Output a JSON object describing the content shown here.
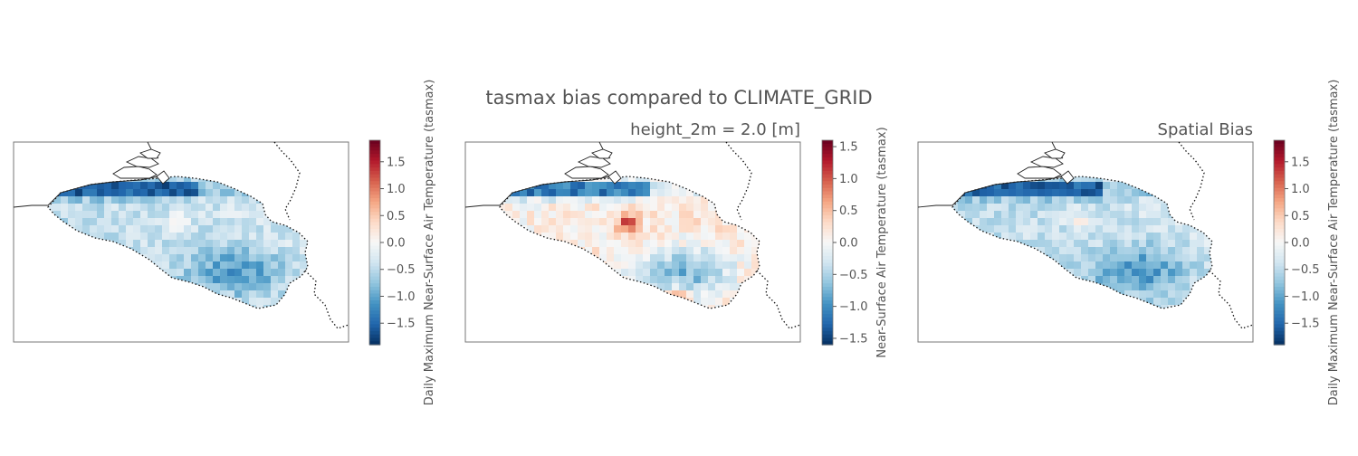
{
  "figure": {
    "title": "tasmax bias compared to CLIMATE_GRID"
  },
  "chart_data": [
    {
      "type": "heatmap",
      "title": "",
      "colorbar_label": "Daily Maximum Near-Surface Air Temperature (tasmax)",
      "colorbar_range": [
        -1.9,
        1.9
      ],
      "colorbar_ticks": [
        -1.5,
        -1.0,
        -0.5,
        0.0,
        0.5,
        1.0,
        1.5
      ],
      "colorbar_tick_labels": [
        "−1.5",
        "−1.0",
        "−0.5",
        "0.0",
        "0.5",
        "1.0",
        "1.5"
      ],
      "colormap": "RdBu_r",
      "bias_profile": {
        "west": -0.5,
        "center": -0.3,
        "southeast": -1.1,
        "coast": -1.8,
        "hotspots": [
          0.4,
          0.3
        ]
      }
    },
    {
      "type": "heatmap",
      "title": "height_2m = 2.0 [m]",
      "colorbar_label": "Near-Surface Air Temperature (tasmax)",
      "colorbar_range": [
        -1.6,
        1.6
      ],
      "colorbar_ticks": [
        -1.5,
        -1.0,
        -0.5,
        0.0,
        0.5,
        1.0,
        1.5
      ],
      "colorbar_tick_labels": [
        "−1.5",
        "−1.0",
        "−0.5",
        "0.0",
        "0.5",
        "1.0",
        "1.5"
      ],
      "colormap": "RdBu_r",
      "bias_profile": {
        "west": 0.05,
        "center": 0.25,
        "southeast": -0.7,
        "coast": -1.4,
        "hotspots": [
          0.9,
          1.1
        ]
      }
    },
    {
      "type": "heatmap",
      "title": "Spatial Bias",
      "colorbar_label": "Daily Maximum Near-Surface Air Temperature (tasmax)",
      "colorbar_range": [
        -1.9,
        1.9
      ],
      "colorbar_ticks": [
        -1.5,
        -1.0,
        -0.5,
        0.0,
        0.5,
        1.0,
        1.5
      ],
      "colorbar_tick_labels": [
        "−1.5",
        "−1.0",
        "−0.5",
        "0.0",
        "0.5",
        "1.0",
        "1.5"
      ],
      "colormap": "RdBu_r",
      "bias_profile": {
        "west": -0.5,
        "center": -0.3,
        "southeast": -1.15,
        "coast": -1.8,
        "hotspots": [
          0.4,
          0.3
        ]
      }
    }
  ]
}
